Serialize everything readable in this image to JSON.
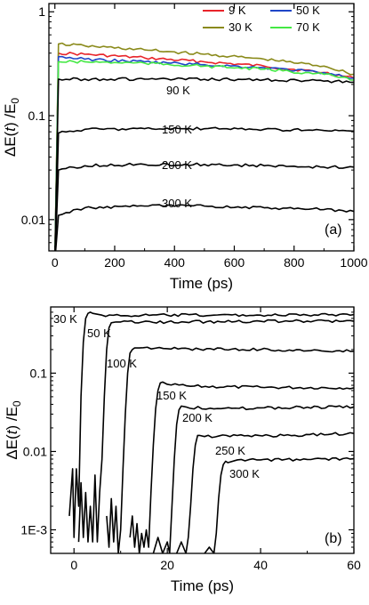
{
  "chart_data": [
    {
      "type": "line",
      "panel_label": "(a)",
      "xlabel": "Time (ps)",
      "ylabel_parts": [
        "ΔE(",
        "t",
        ") /E",
        "0"
      ],
      "xlim": [
        -20,
        1000
      ],
      "ylim": [
        0.005,
        1.2
      ],
      "yscale": "log",
      "x_ticks": [
        0,
        200,
        400,
        600,
        800,
        1000
      ],
      "y_ticks": [
        {
          "v": 0.01,
          "label": "0.01"
        },
        {
          "v": 0.1,
          "label": "0.1"
        },
        {
          "v": 1,
          "label": "1"
        }
      ],
      "legend": {
        "position": "top-right"
      },
      "series": [
        {
          "name": "9 K",
          "color": "#e8242a",
          "in_legend": true,
          "annotation": "",
          "x": [
            0,
            12,
            100,
            300,
            500,
            700,
            900,
            1000
          ],
          "y": [
            0.004,
            0.4,
            0.39,
            0.36,
            0.33,
            0.3,
            0.26,
            0.23
          ]
        },
        {
          "name": "30 K",
          "color": "#8a8a1a",
          "in_legend": true,
          "annotation": "",
          "x": [
            0,
            12,
            100,
            300,
            500,
            700,
            900,
            1000
          ],
          "y": [
            0.004,
            0.49,
            0.47,
            0.43,
            0.39,
            0.35,
            0.3,
            0.25
          ]
        },
        {
          "name": "50 K",
          "color": "#1f46c8",
          "in_legend": true,
          "annotation": "",
          "x": [
            0,
            12,
            100,
            300,
            500,
            700,
            900,
            1000
          ],
          "y": [
            0.004,
            0.37,
            0.35,
            0.33,
            0.31,
            0.29,
            0.26,
            0.23
          ]
        },
        {
          "name": "70 K",
          "color": "#44e844",
          "in_legend": true,
          "annotation": "",
          "x": [
            0,
            12,
            100,
            300,
            500,
            700,
            900,
            1000
          ],
          "y": [
            0.004,
            0.33,
            0.33,
            0.32,
            0.3,
            0.28,
            0.25,
            0.22
          ]
        },
        {
          "name": "",
          "color": "#000000",
          "in_legend": false,
          "annotation": "90 K",
          "x": [
            0,
            12,
            100,
            300,
            500,
            700,
            900,
            1000
          ],
          "y": [
            0.004,
            0.225,
            0.225,
            0.225,
            0.224,
            0.222,
            0.215,
            0.21
          ]
        },
        {
          "name": "",
          "color": "#000000",
          "in_legend": false,
          "annotation": "150 K",
          "x": [
            0,
            12,
            100,
            300,
            500,
            700,
            900,
            1000
          ],
          "y": [
            0.004,
            0.068,
            0.074,
            0.075,
            0.075,
            0.074,
            0.072,
            0.071
          ]
        },
        {
          "name": "",
          "color": "#000000",
          "in_legend": false,
          "annotation": "200 K",
          "x": [
            0,
            12,
            100,
            300,
            500,
            700,
            900,
            1000
          ],
          "y": [
            0.004,
            0.03,
            0.033,
            0.034,
            0.034,
            0.033,
            0.032,
            0.032
          ]
        },
        {
          "name": "",
          "color": "#000000",
          "in_legend": false,
          "annotation": "300 K",
          "x": [
            0,
            12,
            100,
            300,
            500,
            700,
            900,
            1000
          ],
          "y": [
            0.004,
            0.011,
            0.013,
            0.0135,
            0.0135,
            0.013,
            0.0125,
            0.012
          ]
        }
      ]
    },
    {
      "type": "line",
      "panel_label": "(b)",
      "xlabel": "Time (ps)",
      "ylabel_parts": [
        "ΔE(",
        "t",
        ") /E",
        "0"
      ],
      "xlim": [
        -5,
        60
      ],
      "ylim": [
        0.0005,
        0.7
      ],
      "yscale": "log",
      "x_ticks": [
        0,
        20,
        40,
        60
      ],
      "y_ticks": [
        {
          "v": 0.001,
          "label": "1E-3"
        },
        {
          "v": 0.01,
          "label": "0.01"
        },
        {
          "v": 0.1,
          "label": "0.1"
        }
      ],
      "series": [
        {
          "annotation": "30 K",
          "color": "#000000",
          "x": [
            -1,
            -0.3,
            0,
            0.5,
            1,
            1.5,
            2,
            2.5,
            3,
            3.5,
            4,
            6,
            10,
            20,
            30,
            40,
            50,
            60
          ],
          "y": [
            0.0015,
            0.006,
            0.0008,
            0.006,
            0.002,
            0.05,
            0.25,
            0.5,
            0.58,
            0.6,
            0.58,
            0.55,
            0.54,
            0.55,
            0.55,
            0.55,
            0.55,
            0.56
          ]
        },
        {
          "annotation": "50 K",
          "color": "#000000",
          "x": [
            1,
            1.5,
            2,
            2.5,
            3,
            3.5,
            4,
            4.5,
            5,
            5.5,
            6,
            6.5,
            7,
            7.5,
            8,
            9,
            10,
            20,
            40,
            60
          ],
          "y": [
            0.0007,
            0.004,
            0.0008,
            0.003,
            0.0007,
            0.002,
            0.0007,
            0.005,
            0.0007,
            0.003,
            0.008,
            0.05,
            0.2,
            0.38,
            0.44,
            0.45,
            0.45,
            0.45,
            0.46,
            0.46
          ]
        },
        {
          "annotation": "100 K",
          "color": "#000000",
          "x": [
            7,
            7.5,
            8,
            8.5,
            9,
            9.5,
            10,
            10.5,
            11,
            11.5,
            12,
            12.5,
            13,
            14,
            20,
            40,
            60
          ],
          "y": [
            0.0015,
            0.0006,
            0.0025,
            0.0007,
            0.002,
            0.0005,
            0.001,
            0.006,
            0.03,
            0.1,
            0.18,
            0.2,
            0.21,
            0.21,
            0.205,
            0.2,
            0.19
          ]
        },
        {
          "annotation": "150 K",
          "color": "#000000",
          "x": [
            12,
            12.5,
            13,
            13.5,
            14,
            14.5,
            15,
            15.5,
            16,
            16.5,
            17,
            17.5,
            18,
            18.5,
            19,
            20,
            25,
            40,
            60
          ],
          "y": [
            0.0008,
            0.0015,
            0.0006,
            0.0012,
            0.0005,
            0.0009,
            0.0006,
            0.001,
            0.0006,
            0.003,
            0.012,
            0.035,
            0.06,
            0.075,
            0.077,
            0.072,
            0.068,
            0.066,
            0.065
          ]
        },
        {
          "annotation": "200 K",
          "color": "#000000",
          "x": [
            17,
            18,
            19,
            20,
            20.5,
            21,
            21.5,
            22,
            22.5,
            23,
            24,
            30,
            40,
            60
          ],
          "y": [
            0.0005,
            0.0008,
            0.0005,
            0.0007,
            0.0005,
            0.002,
            0.008,
            0.022,
            0.034,
            0.038,
            0.037,
            0.035,
            0.036,
            0.037
          ]
        },
        {
          "annotation": "250 K",
          "color": "#000000",
          "x": [
            22,
            23,
            24,
            24.5,
            25,
            25.5,
            26,
            26.5,
            27,
            28,
            35,
            45,
            60
          ],
          "y": [
            0.0005,
            0.0007,
            0.0005,
            0.0008,
            0.002,
            0.006,
            0.012,
            0.016,
            0.016,
            0.0155,
            0.016,
            0.016,
            0.017
          ]
        },
        {
          "annotation": "300 K",
          "color": "#000000",
          "x": [
            28,
            29,
            30,
            30.5,
            31,
            31.5,
            32,
            32.5,
            33,
            35,
            40,
            50,
            60
          ],
          "y": [
            0.0005,
            0.0006,
            0.0005,
            0.0009,
            0.0025,
            0.005,
            0.0068,
            0.0075,
            0.0072,
            0.0078,
            0.0078,
            0.0079,
            0.0081
          ]
        }
      ]
    }
  ]
}
